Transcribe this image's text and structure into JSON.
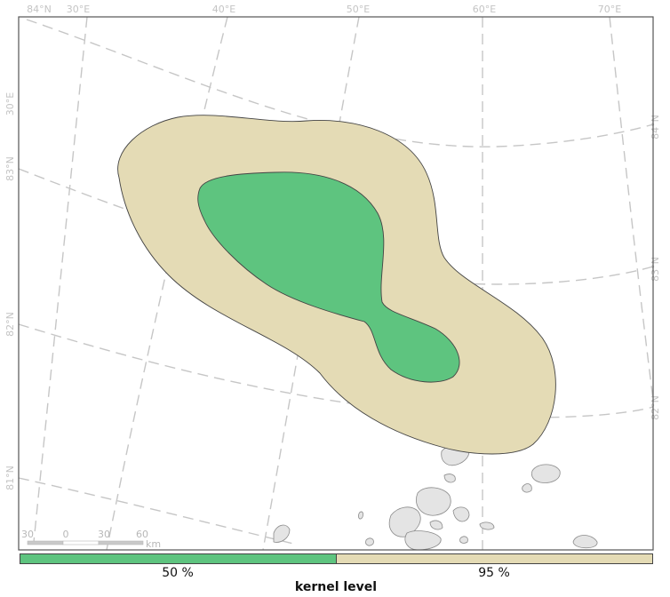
{
  "map": {
    "colors": {
      "kernel_50": "#5ec47f",
      "kernel_95": "#e4dbb5",
      "land": "#e4e4e4",
      "graticule": "#c6c6c6",
      "frame": "#555555"
    },
    "top_labels": [
      "84°N",
      "30°E",
      "40°E",
      "50°E",
      "60°E",
      "70°E"
    ],
    "left_labels": [
      "30°E",
      "83°N",
      "82°N",
      "81°N"
    ],
    "right_labels": [
      "84°N",
      "83°N",
      "82°N"
    ],
    "scale_bar": {
      "labels": [
        "30",
        "0",
        "30",
        "60"
      ],
      "unit": "km"
    }
  },
  "legend": {
    "title": "kernel level",
    "items": [
      {
        "label": "50 %",
        "color": "#5ec47f"
      },
      {
        "label": "95 %",
        "color": "#e4dbb5"
      }
    ]
  }
}
